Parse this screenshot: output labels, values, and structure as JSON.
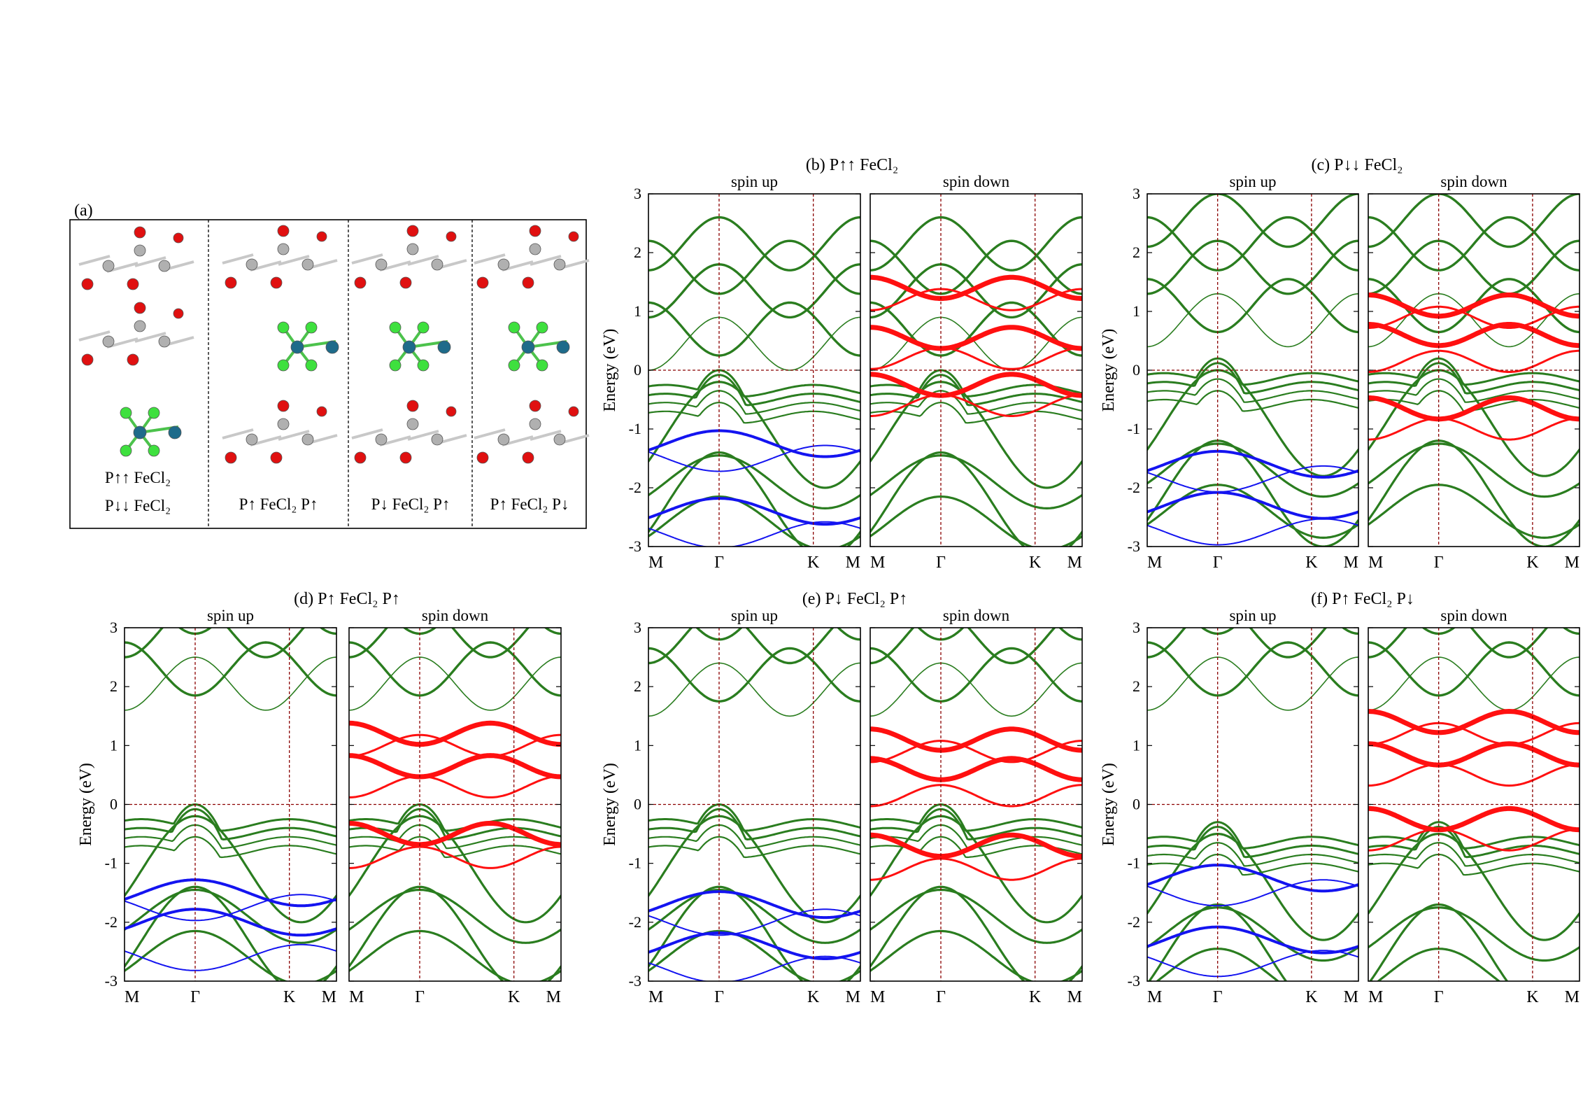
{
  "colors": {
    "conduction": "#2a7d1f",
    "fe_band": "#ff1010",
    "p_band": "#1414f0",
    "reference": "#8b0000",
    "atom_o": "#e01010",
    "atom_c": "#b0b0b0",
    "atom_cl": "#3ee03e",
    "atom_fe": "#1e6b8a"
  },
  "structure_panel": {
    "label": "(a)",
    "columns": [
      {
        "formula_lines": [
          "P↑↑ FeCl₂",
          "P↓↓ FeCl₂"
        ]
      },
      {
        "formula_lines": [
          "P↑ FeCl₂ P↑"
        ]
      },
      {
        "formula_lines": [
          "P↓ FeCl₂ P↑"
        ]
      },
      {
        "formula_lines": [
          "P↑ FeCl₂ P↓"
        ]
      }
    ]
  },
  "chart_data": [
    {
      "id": "b",
      "type": "line",
      "title": "(b) P↑↑ FeCl₂",
      "subplots": [
        "spin up",
        "spin down"
      ],
      "ylabel": "Energy (eV)",
      "ylim": [
        -3,
        3
      ],
      "yticks": [
        "3",
        "2",
        "1",
        "0",
        "-1",
        "-2",
        "-3"
      ],
      "xticks": [
        "M",
        "Γ",
        "K",
        "M"
      ],
      "spin_up": {
        "valence_max": 0.0,
        "conduction_min": 0.1,
        "p_states": [
          -1.25,
          -1.5,
          -2.4,
          -2.8
        ]
      },
      "spin_down": {
        "valence_max": 0.0,
        "fe_states": [
          1.4,
          1.2,
          0.55,
          0.2,
          -0.25,
          -0.6
        ]
      }
    },
    {
      "id": "c",
      "type": "line",
      "title": "(c) P↓↓ FeCl₂",
      "subplots": [
        "spin up",
        "spin down"
      ],
      "ylabel": "Energy (eV)",
      "ylim": [
        -3,
        3
      ],
      "yticks": [
        "3",
        "2",
        "1",
        "0",
        "-1",
        "-2",
        "-3"
      ],
      "xticks": [
        "M",
        "Γ",
        "K",
        "M"
      ],
      "spin_up": {
        "valence_max": 0.2,
        "conduction_min": 0.5,
        "p_states": [
          -1.6,
          -1.85,
          -2.3,
          -2.75
        ]
      },
      "spin_down": {
        "valence_max": 0.2,
        "fe_states": [
          1.1,
          0.9,
          0.6,
          0.15,
          -0.65,
          -1.0
        ]
      }
    },
    {
      "id": "d",
      "type": "line",
      "title": "(d) P↑ FeCl₂ P↑",
      "subplots": [
        "spin up",
        "spin down"
      ],
      "ylabel": "Energy (eV)",
      "ylim": [
        -3,
        3
      ],
      "yticks": [
        "3",
        "2",
        "1",
        "0",
        "-1",
        "-2",
        "-3"
      ],
      "xticks": [
        "M",
        "Γ",
        "K",
        "M"
      ],
      "spin_up": {
        "valence_max": 0.0,
        "conduction_min": 1.7,
        "p_states": [
          -1.5,
          -1.75,
          -2.0,
          -2.6
        ]
      },
      "spin_down": {
        "valence_max": 0.0,
        "fe_states": [
          1.2,
          1.0,
          0.65,
          0.3,
          -0.5,
          -0.9
        ]
      }
    },
    {
      "id": "e",
      "type": "line",
      "title": "(e) P↓ FeCl₂ P↑",
      "subplots": [
        "spin up",
        "spin down"
      ],
      "ylabel": "Energy (eV)",
      "ylim": [
        -3,
        3
      ],
      "yticks": [
        "3",
        "2",
        "1",
        "0",
        "-1",
        "-2",
        "-3"
      ],
      "xticks": [
        "M",
        "Γ",
        "K",
        "M"
      ],
      "spin_up": {
        "valence_max": 0.0,
        "conduction_min": 1.6,
        "p_states": [
          -1.7,
          -2.0,
          -2.4,
          -2.8
        ]
      },
      "spin_down": {
        "valence_max": 0.0,
        "fe_states": [
          1.1,
          0.9,
          0.6,
          0.15,
          -0.7,
          -1.1
        ]
      }
    },
    {
      "id": "f",
      "type": "line",
      "title": "(f) P↑ FeCl₂ P↓",
      "subplots": [
        "spin up",
        "spin down"
      ],
      "ylabel": "Energy (eV)",
      "ylim": [
        -3,
        3
      ],
      "yticks": [
        "3",
        "2",
        "1",
        "0",
        "-1",
        "-2",
        "-3"
      ],
      "xticks": [
        "M",
        "Γ",
        "K",
        "M"
      ],
      "spin_up": {
        "valence_max": -0.3,
        "conduction_min": 1.7,
        "p_states": [
          -1.25,
          -1.5,
          -2.3,
          -2.7
        ]
      },
      "spin_down": {
        "valence_max": -0.3,
        "fe_states": [
          1.4,
          1.2,
          0.85,
          0.5,
          -0.25,
          -0.6
        ]
      }
    }
  ]
}
